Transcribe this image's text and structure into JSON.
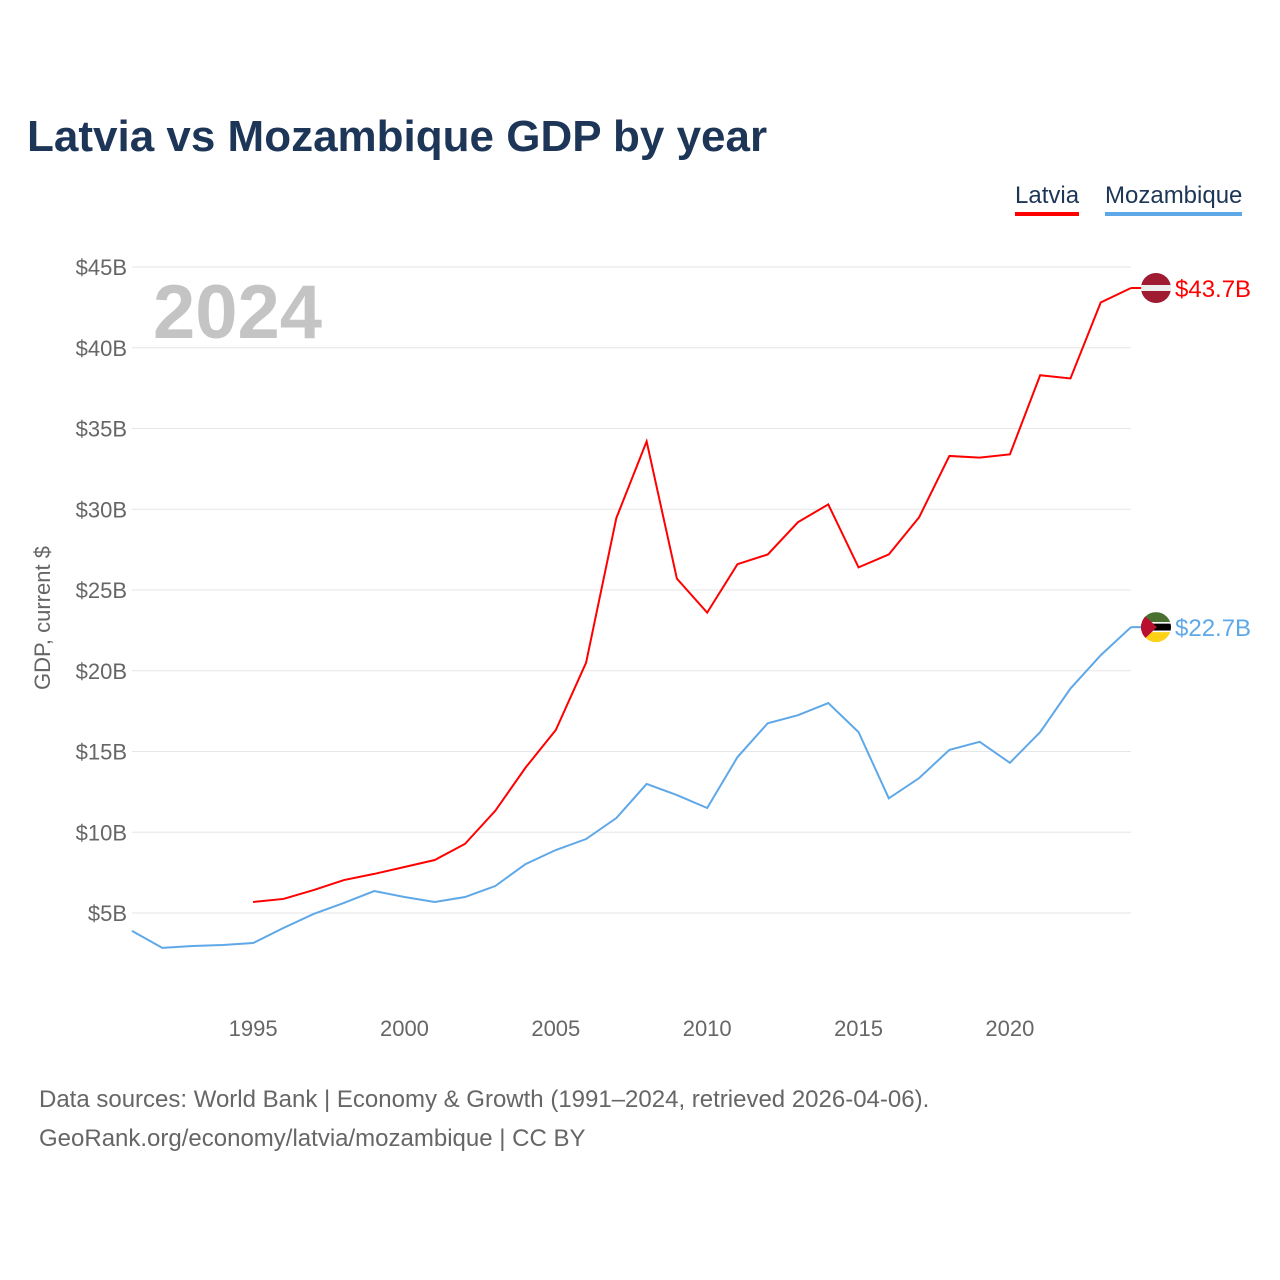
{
  "chart_data": {
    "type": "line",
    "title": "Latvia vs Mozambique GDP by year",
    "ylabel": "GDP, current $",
    "xlabel": "",
    "year_watermark": "2024",
    "ylim": [
      0,
      45
    ],
    "xlim": [
      1991,
      2024
    ],
    "yticks": [
      {
        "v": 5,
        "label": "$5B"
      },
      {
        "v": 10,
        "label": "$10B"
      },
      {
        "v": 15,
        "label": "$15B"
      },
      {
        "v": 20,
        "label": "$20B"
      },
      {
        "v": 25,
        "label": "$25B"
      },
      {
        "v": 30,
        "label": "$30B"
      },
      {
        "v": 35,
        "label": "$35B"
      },
      {
        "v": 40,
        "label": "$40B"
      },
      {
        "v": 45,
        "label": "$45B"
      }
    ],
    "xticks": [
      {
        "v": 1995,
        "label": "1995"
      },
      {
        "v": 2000,
        "label": "2000"
      },
      {
        "v": 2005,
        "label": "2005"
      },
      {
        "v": 2010,
        "label": "2010"
      },
      {
        "v": 2015,
        "label": "2015"
      },
      {
        "v": 2020,
        "label": "2020"
      }
    ],
    "grid": true,
    "legend_position": "top-right",
    "series": [
      {
        "name": "Latvia",
        "color": "#ff0000",
        "end_label": "$43.7B",
        "flag": "latvia-flag",
        "x": [
          1995,
          1996,
          1997,
          1998,
          1999,
          2000,
          2001,
          2002,
          2003,
          2004,
          2005,
          2006,
          2007,
          2008,
          2009,
          2010,
          2011,
          2012,
          2013,
          2014,
          2015,
          2016,
          2017,
          2018,
          2019,
          2020,
          2021,
          2022,
          2023,
          2024
        ],
        "values": [
          5.68,
          5.87,
          6.42,
          7.04,
          7.42,
          7.85,
          8.28,
          9.28,
          11.33,
          14.0,
          16.33,
          20.5,
          29.46,
          34.2,
          25.7,
          23.6,
          26.6,
          27.2,
          29.2,
          30.3,
          26.4,
          27.2,
          29.5,
          33.3,
          33.2,
          33.4,
          38.3,
          38.1,
          42.8,
          43.7
        ]
      },
      {
        "name": "Mozambique",
        "color": "#5fa8e8",
        "end_label": "$22.7B",
        "flag": "mozambique-flag",
        "x": [
          1991,
          1992,
          1993,
          1994,
          1995,
          1996,
          1997,
          1998,
          1999,
          2000,
          2001,
          2002,
          2003,
          2004,
          2005,
          2006,
          2007,
          2008,
          2009,
          2010,
          2011,
          2012,
          2013,
          2014,
          2015,
          2016,
          2017,
          2018,
          2019,
          2020,
          2021,
          2022,
          2023,
          2024
        ],
        "values": [
          3.89,
          2.84,
          2.96,
          3.02,
          3.14,
          4.07,
          4.94,
          5.62,
          6.36,
          5.99,
          5.68,
          5.99,
          6.67,
          8.03,
          8.9,
          9.58,
          10.88,
          12.99,
          12.3,
          11.5,
          14.65,
          16.75,
          17.25,
          18.0,
          16.2,
          12.1,
          13.35,
          15.1,
          15.6,
          14.3,
          16.2,
          18.9,
          20.96,
          22.7
        ]
      }
    ]
  },
  "footer": {
    "line1": "Data sources: World Bank | Economy & Growth (1991–2024, retrieved 2026-04-06).",
    "line2": "GeoRank.org/economy/latvia/mozambique | CC BY"
  }
}
